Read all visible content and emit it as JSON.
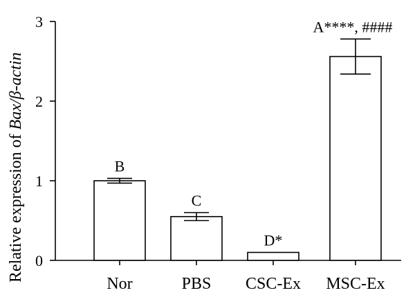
{
  "chart_data": {
    "type": "bar",
    "categories": [
      "Nor",
      "PBS",
      "CSC-Ex",
      "MSC-Ex"
    ],
    "values": [
      1.0,
      0.55,
      0.1,
      2.56
    ],
    "errors": [
      0.03,
      0.05,
      0.0,
      0.22
    ],
    "annotations": [
      "B",
      "C",
      "D*",
      "A****, ####"
    ],
    "ylabel": {
      "prefix": "Relative expression of ",
      "italic": "Bax/β-actin"
    },
    "ylim": [
      0,
      3
    ],
    "yticks": [
      0,
      1,
      2,
      3
    ],
    "grid": false
  }
}
